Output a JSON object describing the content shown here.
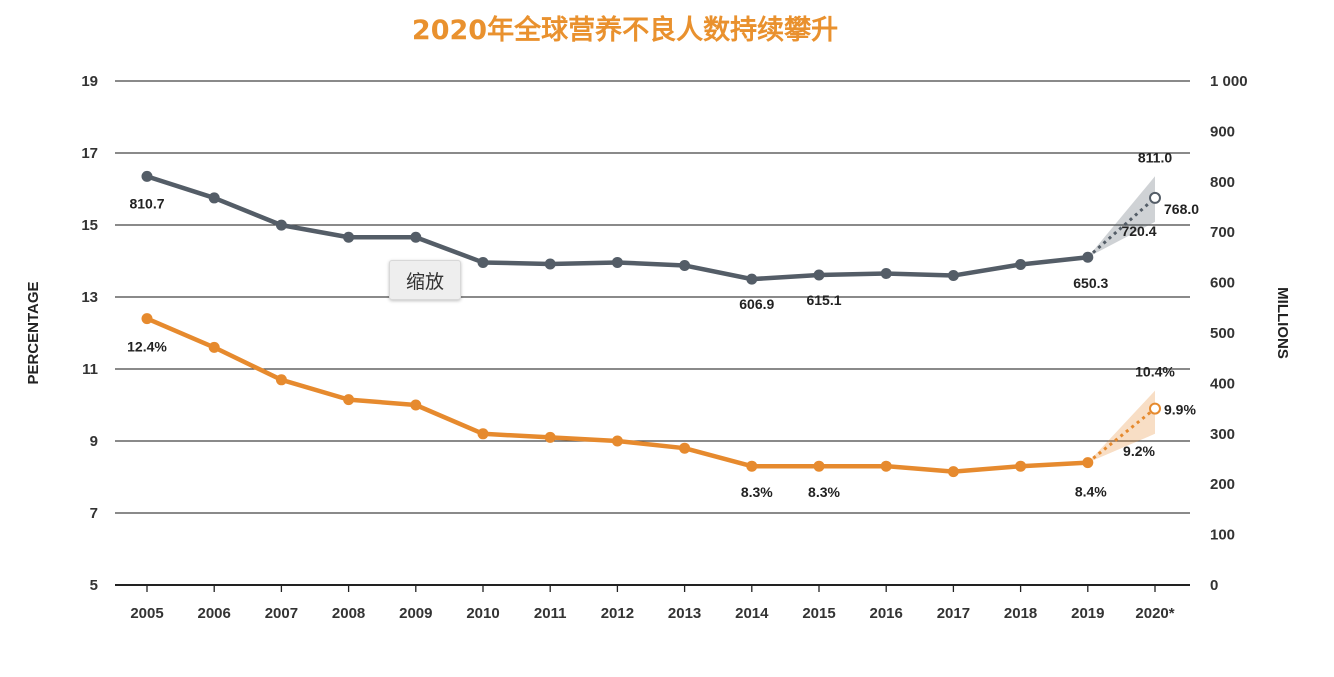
{
  "chart_data": {
    "type": "line",
    "title": "2020年全球营养不良人数持续攀升",
    "x_categories": [
      "2005",
      "2006",
      "2007",
      "2008",
      "2009",
      "2010",
      "2011",
      "2012",
      "2013",
      "2014",
      "2015",
      "2016",
      "2017",
      "2018",
      "2019",
      "2020*"
    ],
    "left_axis": {
      "label": "PERCENTAGE",
      "ticks": [
        "5",
        "7",
        "9",
        "11",
        "13",
        "15",
        "17",
        "19"
      ],
      "range": [
        5,
        19
      ]
    },
    "right_axis": {
      "label": "MILLIONS",
      "ticks": [
        "0",
        "100",
        "200",
        "300",
        "400",
        "500",
        "600",
        "700",
        "800",
        "900",
        "1 000"
      ],
      "range": [
        0,
        1000
      ]
    },
    "grid": true,
    "series": [
      {
        "axis": "right",
        "color": "#545d67",
        "values": [
          810.7,
          768,
          714,
          690,
          690,
          640,
          637,
          640,
          634,
          606.9,
          615.1,
          618,
          614,
          636,
          650.3
        ],
        "projection": {
          "value": 768.0,
          "high": 811.0,
          "low": 720.4
        },
        "labels": [
          {
            "index": 0,
            "text": "810.7"
          },
          {
            "index": 9,
            "text": "606.9"
          },
          {
            "index": 10,
            "text": "615.1"
          },
          {
            "index": 14,
            "text": "650.3"
          }
        ],
        "projection_labels": {
          "high": "811.0",
          "value": "768.0",
          "low": "720.4"
        }
      },
      {
        "axis": "left",
        "color": "#e68a2e",
        "values": [
          12.4,
          11.6,
          10.7,
          10.15,
          10.0,
          9.2,
          9.1,
          9.0,
          8.8,
          8.3,
          8.3,
          8.3,
          8.15,
          8.3,
          8.4
        ],
        "projection": {
          "value": 9.9,
          "high": 10.4,
          "low": 9.2
        },
        "labels": [
          {
            "index": 0,
            "text": "12.4%"
          },
          {
            "index": 9,
            "text": "8.3%"
          },
          {
            "index": 10,
            "text": "8.3%"
          },
          {
            "index": 14,
            "text": "8.4%"
          }
        ],
        "projection_labels": {
          "high": "10.4%",
          "value": "9.9%",
          "low": "9.2%"
        }
      }
    ]
  },
  "tooltip": {
    "label": "缩放"
  }
}
